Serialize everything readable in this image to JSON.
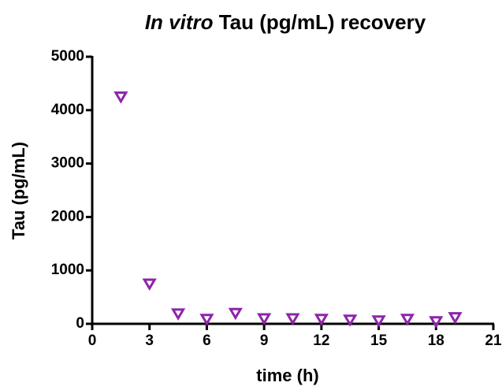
{
  "chart_data": {
    "type": "scatter",
    "title_parts": [
      {
        "text": "In vitro",
        "italic": true
      },
      {
        "text": "Tau (pg/mL) recovery",
        "italic": false
      }
    ],
    "xlabel": "time (h)",
    "ylabel": "Tau (pg/mL)",
    "series": [
      {
        "name": "Tau",
        "color": "#8e24aa",
        "x": [
          1.5,
          3,
          4.5,
          6,
          7.5,
          9,
          10.5,
          12,
          13.5,
          15,
          16.5,
          18,
          19
        ],
        "values": [
          4250,
          750,
          190,
          90,
          200,
          100,
          100,
          90,
          75,
          60,
          90,
          45,
          120
        ]
      }
    ],
    "xlim": [
      0,
      21
    ],
    "xticks": [
      0,
      3,
      6,
      9,
      12,
      15,
      18,
      21
    ],
    "ylim": [
      0,
      5000
    ],
    "yticks": [
      0,
      1000,
      2000,
      3000,
      4000,
      5000
    ],
    "grid": false,
    "marker": "triangle-down"
  }
}
